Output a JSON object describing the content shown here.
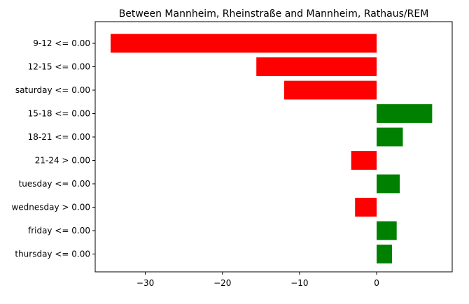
{
  "chart_data": {
    "type": "bar",
    "orientation": "horizontal",
    "title": "Between Mannheim, Rheinstraße and Mannheim, Rathaus/REM",
    "xlabel": "",
    "ylabel": "",
    "xlim": [
      -36.5,
      9.8
    ],
    "x_ticks": [
      -30,
      -20,
      -10,
      0
    ],
    "x_tick_labels": [
      "−30",
      "−20",
      "−10",
      "0"
    ],
    "grid": false,
    "categories": [
      "9-12 <= 0.00",
      "12-15 <= 0.00",
      "saturday <= 0.00",
      "15-18 <= 0.00",
      "18-21 <= 0.00",
      "21-24 > 0.00",
      "tuesday <= 0.00",
      "wednesday > 0.00",
      "friday <= 0.00",
      "thursday <= 0.00"
    ],
    "values": [
      -34.5,
      -15.6,
      -12.0,
      7.2,
      3.4,
      -3.3,
      3.0,
      -2.8,
      2.6,
      2.0
    ],
    "colors": {
      "positive": "#008000",
      "negative": "#ff0000"
    }
  }
}
